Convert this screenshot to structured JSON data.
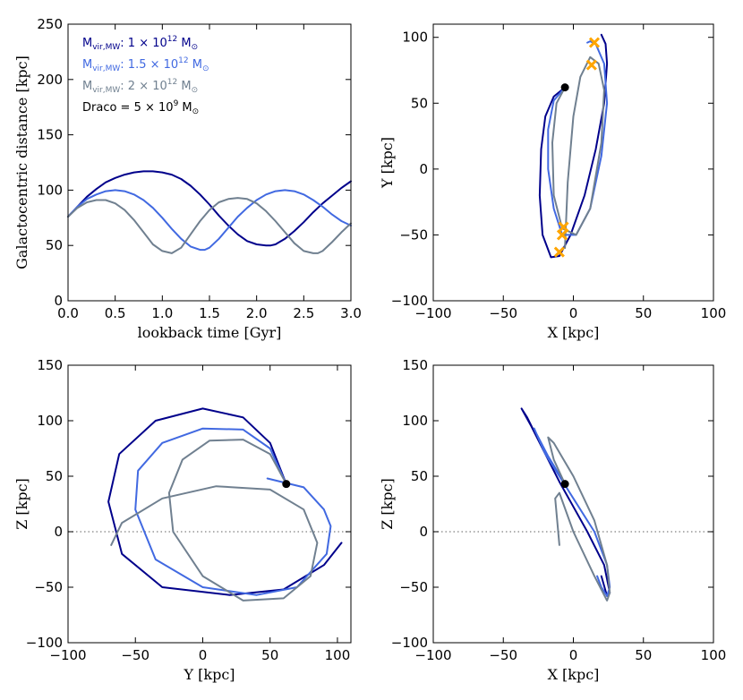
{
  "colors": {
    "mw1": "#00008b",
    "mw15": "#4169e1",
    "mw2": "#708090",
    "draco_marker": "#000000",
    "cross": "#ffa500",
    "zeroline": "#808080"
  },
  "legend": {
    "entries": [
      {
        "series": "mw1",
        "main": "M",
        "sub": "vir,MW",
        "rest": ": 1 × 10",
        "exp": "12",
        "unit": "M",
        "sunsym": "⊙"
      },
      {
        "series": "mw15",
        "main": "M",
        "sub": "vir,MW",
        "rest": ": 1.5 × 10",
        "exp": "12",
        "unit": "M",
        "sunsym": "⊙"
      },
      {
        "series": "mw2",
        "main": "M",
        "sub": "vir,MW",
        "rest": ": 2 × 10",
        "exp": "12",
        "unit": "M",
        "sunsym": "⊙"
      },
      {
        "series": "draco",
        "main": "Draco = 5 × 10",
        "exp": "9",
        "unit": "M",
        "sunsym": "⊙"
      }
    ]
  },
  "chart_data": [
    {
      "id": "distance",
      "type": "line",
      "xlabel": "lookback time [Gyr]",
      "ylabel": "Galactocentric distance [kpc]",
      "xlim": [
        0,
        3
      ],
      "ylim": [
        0,
        250
      ],
      "xticks": [
        "0.0",
        "0.5",
        "1.0",
        "1.5",
        "2.0",
        "2.5",
        "3.0"
      ],
      "yticks": [
        "0",
        "50",
        "100",
        "150",
        "200",
        "250"
      ],
      "series": [
        {
          "key": "mw1",
          "name": "M_vir,MW: 1e12 Msun",
          "x": [
            0,
            0.1,
            0.2,
            0.3,
            0.4,
            0.5,
            0.6,
            0.7,
            0.8,
            0.9,
            1.0,
            1.1,
            1.2,
            1.3,
            1.4,
            1.5,
            1.6,
            1.7,
            1.8,
            1.9,
            2.0,
            2.1,
            2.15,
            2.2,
            2.3,
            2.4,
            2.5,
            2.6,
            2.7,
            2.8,
            2.9,
            3.0
          ],
          "y": [
            76,
            85,
            94,
            101,
            107,
            111,
            114,
            116,
            117,
            117,
            116,
            114,
            110,
            104,
            96,
            87,
            77,
            68,
            60,
            54,
            51,
            50,
            50,
            51,
            56,
            63,
            71,
            80,
            88,
            95,
            102,
            108
          ]
        },
        {
          "key": "mw15",
          "name": "M_vir,MW: 1.5e12 Msun",
          "x": [
            0,
            0.1,
            0.2,
            0.3,
            0.4,
            0.5,
            0.6,
            0.7,
            0.8,
            0.9,
            1.0,
            1.1,
            1.2,
            1.3,
            1.4,
            1.45,
            1.5,
            1.6,
            1.7,
            1.8,
            1.9,
            2.0,
            2.1,
            2.2,
            2.3,
            2.4,
            2.5,
            2.6,
            2.7,
            2.8,
            2.9,
            3.0
          ],
          "y": [
            76,
            85,
            92,
            96,
            99,
            100,
            99,
            96,
            91,
            84,
            75,
            65,
            56,
            49,
            46,
            46,
            48,
            56,
            66,
            76,
            84,
            91,
            96,
            99,
            100,
            99,
            96,
            91,
            85,
            78,
            72,
            68
          ]
        },
        {
          "key": "mw2",
          "name": "M_vir,MW: 2e12 Msun",
          "x": [
            0,
            0.1,
            0.2,
            0.3,
            0.4,
            0.5,
            0.6,
            0.7,
            0.8,
            0.9,
            1.0,
            1.1,
            1.2,
            1.3,
            1.4,
            1.5,
            1.6,
            1.7,
            1.8,
            1.9,
            2.0,
            2.1,
            2.2,
            2.3,
            2.4,
            2.5,
            2.6,
            2.65,
            2.7,
            2.8,
            2.9,
            3.0
          ],
          "y": [
            76,
            84,
            89,
            91,
            91,
            88,
            82,
            73,
            62,
            51,
            45,
            43,
            48,
            60,
            72,
            82,
            89,
            92,
            93,
            92,
            88,
            81,
            72,
            62,
            52,
            45,
            43,
            43,
            45,
            53,
            62,
            70
          ]
        }
      ]
    },
    {
      "id": "xy",
      "type": "line",
      "xlabel": "X [kpc]",
      "ylabel": "Y [kpc]",
      "xlim": [
        -100,
        100
      ],
      "ylim": [
        -100,
        110
      ],
      "xticks": [
        "−100",
        "−50",
        "0",
        "50",
        "100"
      ],
      "yticks": [
        "−100",
        "−50",
        "0",
        "50",
        "100"
      ],
      "series": [
        {
          "key": "mw1",
          "x": [
            -6,
            -14,
            -20,
            -23,
            -24,
            -22,
            -16,
            -10,
            -2,
            8,
            16,
            22,
            24,
            23,
            20
          ],
          "y": [
            62,
            55,
            40,
            15,
            -20,
            -50,
            -67,
            -66,
            -50,
            -20,
            15,
            50,
            80,
            95,
            102
          ]
        },
        {
          "key": "mw15",
          "x": [
            -6,
            -14,
            -18,
            -18,
            -14,
            -8,
            2,
            12,
            20,
            24,
            22,
            16,
            12,
            10
          ],
          "y": [
            62,
            52,
            30,
            0,
            -30,
            -50,
            -50,
            -30,
            10,
            50,
            80,
            95,
            97,
            96
          ]
        },
        {
          "key": "mw2",
          "x": [
            -6,
            -12,
            -15,
            -14,
            -8,
            2,
            12,
            20,
            22,
            18,
            12,
            5,
            0,
            -4,
            -6
          ],
          "y": [
            62,
            50,
            20,
            -20,
            -45,
            -50,
            -30,
            20,
            60,
            80,
            85,
            70,
            40,
            -10,
            -60
          ]
        }
      ],
      "markers": [
        {
          "x": -6,
          "y": 62,
          "kind": "dot"
        }
      ],
      "crosses": [
        {
          "x": 13,
          "y": 79
        },
        {
          "x": 15,
          "y": 96
        },
        {
          "x": -7,
          "y": -44
        },
        {
          "x": -8,
          "y": -50
        },
        {
          "x": -10,
          "y": -63
        }
      ]
    },
    {
      "id": "yz",
      "type": "line",
      "xlabel": "Y [kpc]",
      "ylabel": "Z [kpc]",
      "xlim": [
        -100,
        110
      ],
      "ylim": [
        -100,
        150
      ],
      "xticks": [
        "−100",
        "−50",
        "0",
        "50",
        "100"
      ],
      "yticks": [
        "−100",
        "−50",
        "0",
        "50",
        "100",
        "150"
      ],
      "zero_line": true,
      "series": [
        {
          "key": "mw1",
          "x": [
            62,
            50,
            30,
            0,
            -35,
            -62,
            -70,
            -60,
            -30,
            20,
            60,
            90,
            103
          ],
          "y": [
            43,
            80,
            103,
            111,
            100,
            70,
            27,
            -20,
            -50,
            -57,
            -52,
            -30,
            -10
          ]
        },
        {
          "key": "mw15",
          "x": [
            62,
            50,
            30,
            0,
            -30,
            -48,
            -50,
            -35,
            0,
            40,
            70,
            92,
            95,
            90,
            75,
            48
          ],
          "y": [
            43,
            75,
            92,
            93,
            80,
            55,
            20,
            -25,
            -50,
            -57,
            -50,
            -20,
            5,
            20,
            40,
            48
          ]
        },
        {
          "key": "mw2",
          "x": [
            62,
            50,
            30,
            5,
            -15,
            -25,
            -22,
            0,
            30,
            60,
            80,
            85,
            75,
            50,
            10,
            -30,
            -60,
            -68
          ],
          "y": [
            43,
            70,
            83,
            82,
            65,
            35,
            0,
            -40,
            -62,
            -60,
            -40,
            -10,
            20,
            38,
            41,
            30,
            8,
            -12
          ]
        }
      ],
      "markers": [
        {
          "x": 62,
          "y": 43,
          "kind": "dot"
        }
      ]
    },
    {
      "id": "xz",
      "type": "line",
      "xlabel": "X [kpc]",
      "ylabel": "Z [kpc]",
      "xlim": [
        -100,
        100
      ],
      "ylim": [
        -100,
        150
      ],
      "xticks": [
        "−100",
        "−50",
        "0",
        "50",
        "100"
      ],
      "yticks": [
        "−100",
        "−50",
        "0",
        "50",
        "100",
        "150"
      ],
      "zero_line": true,
      "series": [
        {
          "key": "mw1",
          "x": [
            -6,
            -20,
            -33,
            -37,
            -30,
            -10,
            10,
            22,
            26,
            24,
            20
          ],
          "y": [
            43,
            70,
            103,
            111,
            95,
            45,
            0,
            -30,
            -55,
            -58,
            -40
          ]
        },
        {
          "key": "mw15",
          "x": [
            -6,
            -18,
            -27,
            -28,
            -20,
            0,
            15,
            24,
            26,
            24,
            20,
            17
          ],
          "y": [
            43,
            68,
            90,
            93,
            70,
            30,
            0,
            -30,
            -50,
            -58,
            -50,
            -40
          ]
        },
        {
          "key": "mw2",
          "x": [
            -6,
            -14,
            -18,
            -14,
            0,
            15,
            24,
            26,
            24,
            15,
            0,
            -10,
            -13,
            -10
          ],
          "y": [
            43,
            65,
            85,
            80,
            50,
            10,
            -30,
            -55,
            -62,
            -40,
            0,
            35,
            30,
            -12
          ]
        }
      ],
      "markers": [
        {
          "x": -6,
          "y": 43,
          "kind": "dot"
        }
      ]
    }
  ]
}
